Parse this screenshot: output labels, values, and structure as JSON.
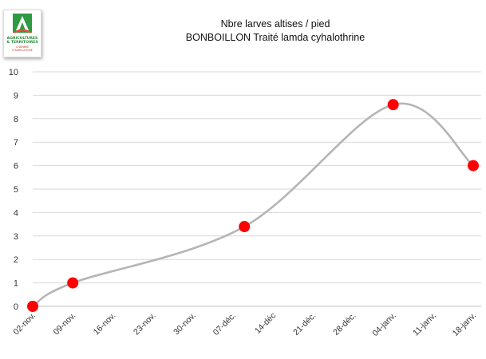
{
  "chart_data": {
    "type": "line",
    "title": "Nbre larves altises / pied",
    "subtitle": "BONBOILLON Traité lamda cyhalothrine",
    "xlabel": "",
    "ylabel": "",
    "x_ticks": [
      "02-nov.",
      "09-nov.",
      "16-nov.",
      "23-nov.",
      "30-nov.",
      "07-déc.",
      "14-déc",
      "21-déc.",
      "28-déc.",
      "04-janv.",
      "11-janv.",
      "18-janv."
    ],
    "ylim": [
      0,
      10
    ],
    "y_ticks": [
      0,
      1,
      2,
      3,
      4,
      5,
      6,
      7,
      8,
      9,
      10
    ],
    "grid": true,
    "smooth": true,
    "line_color": "#b5b5b5",
    "marker_color": "#ff0000",
    "series": [
      {
        "points": [
          {
            "x": "02-nov.",
            "y": 0
          },
          {
            "x": "09-nov.",
            "y": 1
          },
          {
            "x": "09-déc.",
            "y": 3.4
          },
          {
            "x": "04-janv.",
            "y": 8.6
          },
          {
            "x": "18-janv.",
            "y": 6
          }
        ]
      }
    ]
  },
  "logo": {
    "text": "AGRICULTURES & TERRITOIRES",
    "subtext": "CHAMBRE D'AGRICULTURE"
  }
}
